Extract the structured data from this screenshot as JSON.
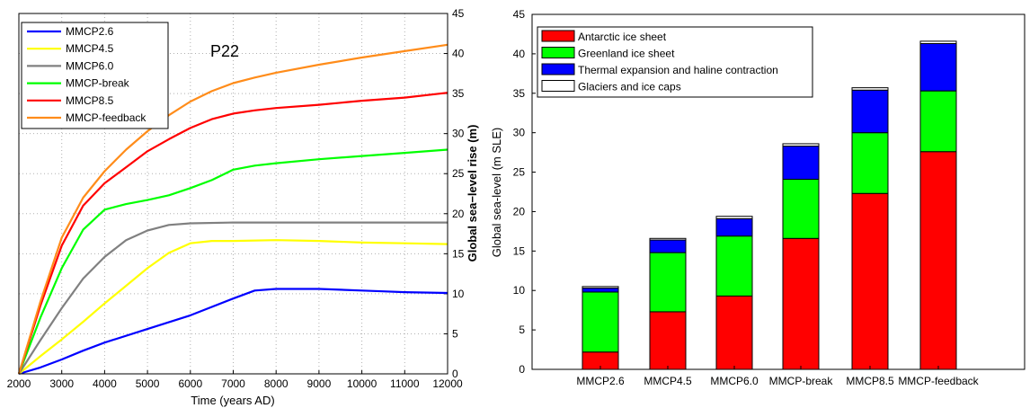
{
  "chart_data": [
    {
      "type": "line",
      "annotation": "P22",
      "xlabel": "Time (years AD)",
      "ylabel": "Global sea−level rise (m)",
      "xlim": [
        2000,
        12000
      ],
      "ylim": [
        0,
        45
      ],
      "xticks": [
        "2000",
        "3000",
        "4000",
        "5000",
        "6000",
        "7000",
        "8000",
        "9000",
        "10000",
        "11000",
        "12000"
      ],
      "yticks": [
        "0",
        "5",
        "10",
        "15",
        "20",
        "25",
        "30",
        "35",
        "40",
        "45"
      ],
      "y_axis_side": "right",
      "grid": true,
      "legend_position": "top-left",
      "series": [
        {
          "name": "MMCP2.6",
          "color": "#0000ff",
          "x": [
            2000,
            2500,
            3000,
            3500,
            4000,
            5000,
            6000,
            7000,
            7500,
            8000,
            9000,
            10000,
            10500,
            11000,
            12000
          ],
          "y": [
            0,
            0.8,
            1.8,
            2.9,
            3.9,
            5.6,
            7.3,
            9.4,
            10.4,
            10.6,
            10.6,
            10.4,
            10.3,
            10.2,
            10.1
          ]
        },
        {
          "name": "MMCP4.5",
          "color": "#ffff00",
          "x": [
            2000,
            2500,
            3000,
            3500,
            4000,
            4500,
            5000,
            5500,
            6000,
            6500,
            7000,
            8000,
            9000,
            10000,
            11000,
            12000
          ],
          "y": [
            0,
            2.2,
            4.3,
            6.5,
            8.8,
            11.0,
            13.2,
            15.1,
            16.3,
            16.6,
            16.6,
            16.7,
            16.6,
            16.4,
            16.3,
            16.2
          ]
        },
        {
          "name": "MMCP6.0",
          "color": "#808080",
          "x": [
            2000,
            2500,
            3000,
            3500,
            4000,
            4500,
            5000,
            5500,
            6000,
            7000,
            8000,
            9000,
            10000,
            11000,
            12000
          ],
          "y": [
            0,
            4.2,
            8.2,
            11.9,
            14.6,
            16.7,
            17.9,
            18.6,
            18.8,
            18.9,
            18.9,
            18.9,
            18.9,
            18.9,
            18.9
          ]
        },
        {
          "name": "MMCP-break",
          "color": "#00ff00",
          "x": [
            2000,
            2500,
            3000,
            3500,
            4000,
            4500,
            5000,
            5500,
            6000,
            6500,
            7000,
            7500,
            8000,
            9000,
            10000,
            11000,
            12000
          ],
          "y": [
            0,
            7.0,
            13.2,
            18.0,
            20.5,
            21.2,
            21.7,
            22.3,
            23.2,
            24.2,
            25.5,
            26.0,
            26.3,
            26.8,
            27.2,
            27.6,
            28.0
          ]
        },
        {
          "name": "MMCP8.5",
          "color": "#ff0000",
          "x": [
            2000,
            2500,
            3000,
            3500,
            4000,
            4500,
            5000,
            5500,
            6000,
            6500,
            7000,
            7500,
            8000,
            9000,
            10000,
            11000,
            12000
          ],
          "y": [
            0,
            8.5,
            16.0,
            21.0,
            23.8,
            25.8,
            27.8,
            29.3,
            30.7,
            31.8,
            32.5,
            32.9,
            33.2,
            33.6,
            34.1,
            34.5,
            35.1
          ]
        },
        {
          "name": "MMCP-feedback",
          "color": "#ff8c1a",
          "x": [
            2000,
            2500,
            3000,
            3500,
            4000,
            4500,
            5000,
            5500,
            6000,
            6500,
            7000,
            7500,
            8000,
            9000,
            10000,
            11000,
            12000
          ],
          "y": [
            0,
            9.0,
            17.0,
            22.0,
            25.3,
            28.0,
            30.3,
            32.3,
            34.0,
            35.3,
            36.3,
            37.0,
            37.6,
            38.6,
            39.5,
            40.3,
            41.1
          ]
        }
      ]
    },
    {
      "type": "bar",
      "stacked": true,
      "categories": [
        "MMCP2.6",
        "MMCP4.5",
        "MMCP6.0",
        "MMCP-break",
        "MMCP8.5",
        "MMCP-feedback"
      ],
      "ylabel": "Global sea-level (m SLE)",
      "ylim": [
        0,
        45
      ],
      "yticks": [
        "0",
        "5",
        "10",
        "15",
        "20",
        "25",
        "30",
        "35",
        "40",
        "45"
      ],
      "legend_position": "top-left",
      "series": [
        {
          "name": "Antarctic ice sheet",
          "color": "#ff0000",
          "values": [
            2.2,
            7.3,
            9.3,
            16.6,
            22.3,
            27.6
          ]
        },
        {
          "name": "Greenland ice sheet",
          "color": "#00ff00",
          "values": [
            7.6,
            7.5,
            7.6,
            7.5,
            7.7,
            7.7
          ]
        },
        {
          "name": "Thermal expansion and haline contraction",
          "color": "#0000ff",
          "values": [
            0.5,
            1.6,
            2.2,
            4.2,
            5.4,
            6.0
          ]
        },
        {
          "name": "Glaciers and ice caps",
          "color": "#ffffff",
          "values": [
            0.2,
            0.2,
            0.3,
            0.3,
            0.3,
            0.3
          ]
        }
      ]
    }
  ]
}
